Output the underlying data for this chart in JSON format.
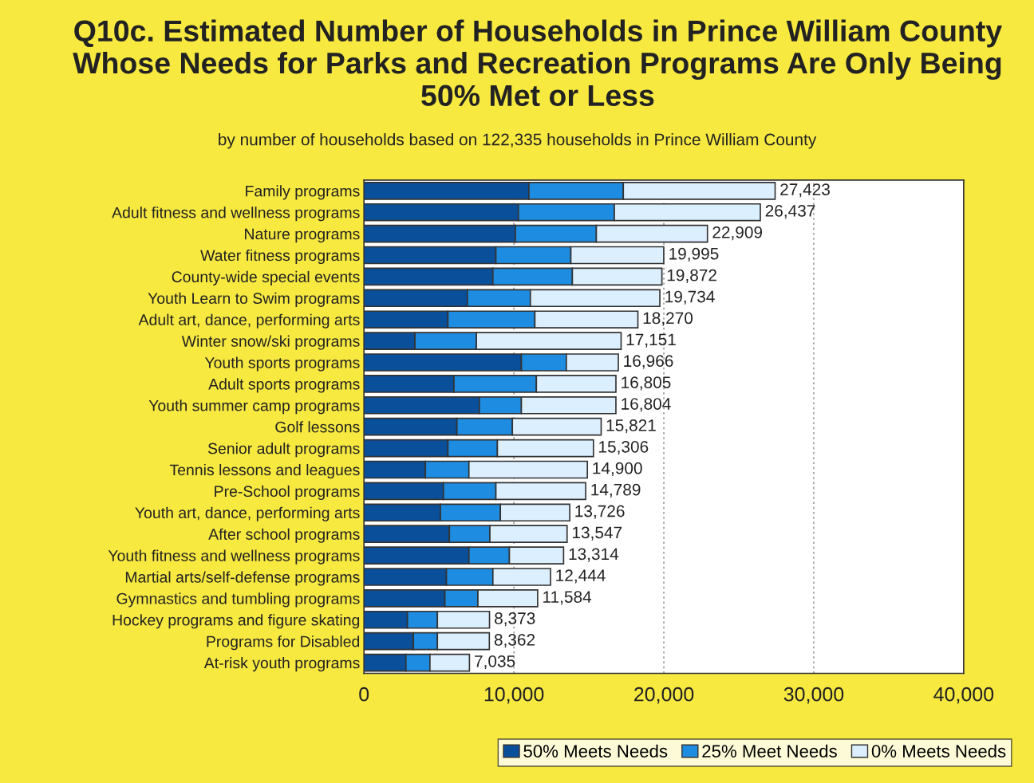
{
  "chart_data": {
    "type": "bar",
    "orientation": "horizontal",
    "stacked": true,
    "title": "Q10c. Estimated Number of Households in Prince William County Whose Needs for Parks and Recreation Programs Are Only Being 50% Met or Less",
    "subtitle": "by number of households based on 122,335 households in Prince William County",
    "categories": [
      "Family programs",
      "Adult fitness and wellness programs",
      "Nature programs",
      "Water fitness programs",
      "County-wide special events",
      "Youth Learn to Swim programs",
      "Adult art, dance, performing arts",
      "Winter snow/ski programs",
      "Youth sports programs",
      "Adult sports programs",
      "Youth summer camp programs",
      "Golf lessons",
      "Senior adult programs",
      "Tennis lessons and leagues",
      "Pre-School programs",
      "Youth art, dance, performing arts",
      "After school programs",
      "Youth fitness and wellness programs",
      "Martial arts/self-defense programs",
      "Gymnastics and tumbling programs",
      "Hockey programs and figure skating",
      "Programs for Disabled",
      "At-risk youth programs"
    ],
    "series": [
      {
        "name": "50% Meets Needs",
        "color": "#0a4f9a",
        "values": [
          11000,
          10300,
          10100,
          8800,
          8600,
          6900,
          5600,
          3400,
          10500,
          6000,
          7700,
          6200,
          5600,
          4100,
          5300,
          5100,
          5700,
          7000,
          5500,
          5400,
          2900,
          3300,
          2800
        ]
      },
      {
        "name": "25% Meet Needs",
        "color": "#1e8ce0",
        "values": [
          6300,
          6400,
          5400,
          5000,
          5300,
          4200,
          5800,
          4100,
          3000,
          5500,
          2800,
          3700,
          3300,
          2900,
          3500,
          4000,
          2700,
          2700,
          3100,
          2200,
          2000,
          1600,
          1600
        ]
      },
      {
        "name": "0% Meets Needs",
        "color": "#dcefff",
        "values": [
          10123,
          9737,
          7409,
          6195,
          5972,
          8634,
          6870,
          9651,
          3466,
          5305,
          6304,
          5921,
          6406,
          7900,
          5989,
          4626,
          5147,
          3614,
          3844,
          3984,
          3473,
          3462,
          2635
        ]
      }
    ],
    "totals": [
      "27,423",
      "26,437",
      "22,909",
      "19,995",
      "19,872",
      "19,734",
      "18,270",
      "17,151",
      "16,966",
      "16,805",
      "16,804",
      "15,821",
      "15,306",
      "14,900",
      "14,789",
      "13,726",
      "13,547",
      "13,314",
      "12,444",
      "11,584",
      "8,373",
      "8,362",
      "7,035"
    ],
    "xlim": [
      0,
      40000
    ],
    "xticks": [
      {
        "value": 0,
        "label": "0"
      },
      {
        "value": 10000,
        "label": "10,000"
      },
      {
        "value": 20000,
        "label": "20,000"
      },
      {
        "value": 30000,
        "label": "30,000"
      },
      {
        "value": 40000,
        "label": "40,000"
      }
    ],
    "grid": "x",
    "legend": "bottom"
  }
}
